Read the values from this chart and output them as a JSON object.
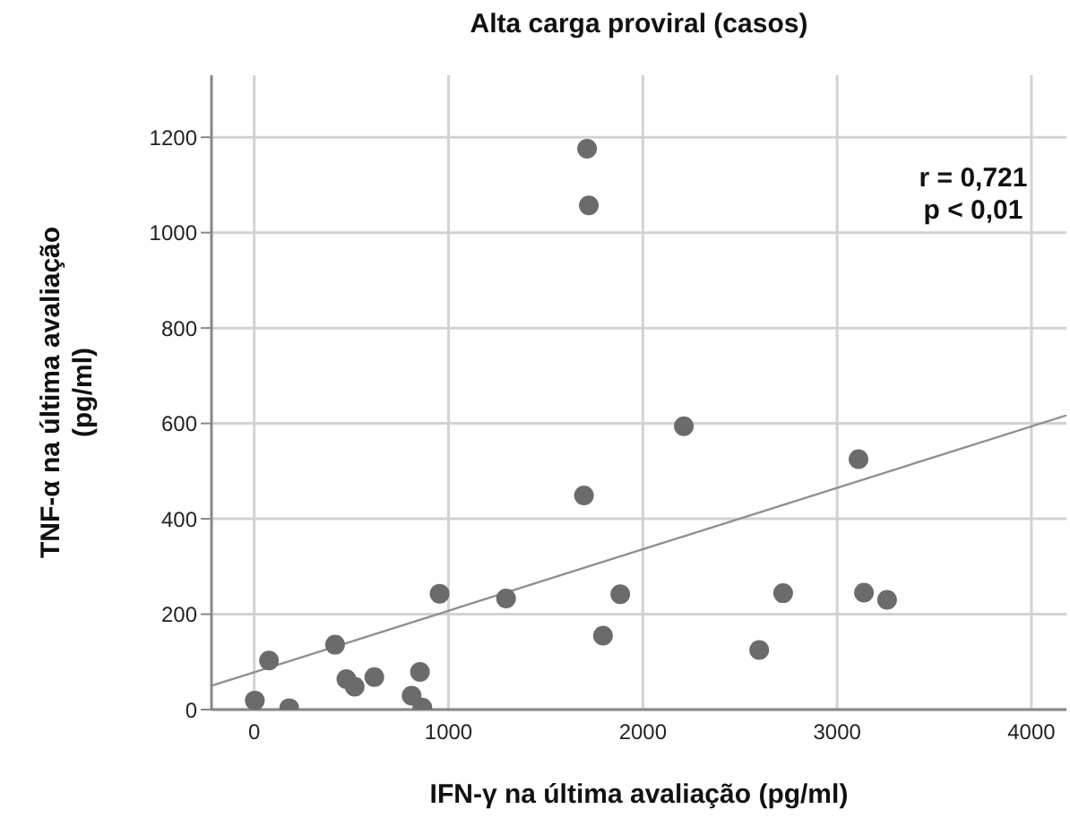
{
  "chart_data": {
    "type": "scatter",
    "title": "Alta carga proviral (casos)",
    "xlabel": "IFN-γ na última avaliação (pg/ml)",
    "ylabel": "TNF-α na última avaliação (pg/ml)",
    "annotations": [
      "r = 0,721",
      "p < 0,01"
    ],
    "xlim": [
      -220,
      4180
    ],
    "xticks": [
      0,
      1000,
      2000,
      3000,
      4000
    ],
    "ylim": [
      0,
      1330
    ],
    "yticks": [
      0,
      200,
      400,
      600,
      800,
      1000,
      1200
    ],
    "grid": true,
    "marker": "circle",
    "series": [
      {
        "color": "#6b6b6b",
        "x": [
          3,
          76,
          180,
          416,
          474,
          517,
          618,
          810,
          853,
          865,
          954,
          1296,
          1713,
          1722,
          1697,
          1795,
          1884,
          2211,
          2599,
          2722,
          3110,
          3138,
          3257
        ],
        "values": [
          19,
          103,
          3,
          136,
          64,
          48,
          68,
          29,
          79,
          4,
          243,
          233,
          1176,
          1057,
          449,
          155,
          242,
          594,
          125,
          244,
          525,
          245,
          230
        ]
      },
      {
        "type": "line",
        "marker": "none",
        "color": "#909090",
        "x": [
          -220,
          4180
        ],
        "values": [
          50,
          617
        ]
      }
    ]
  }
}
